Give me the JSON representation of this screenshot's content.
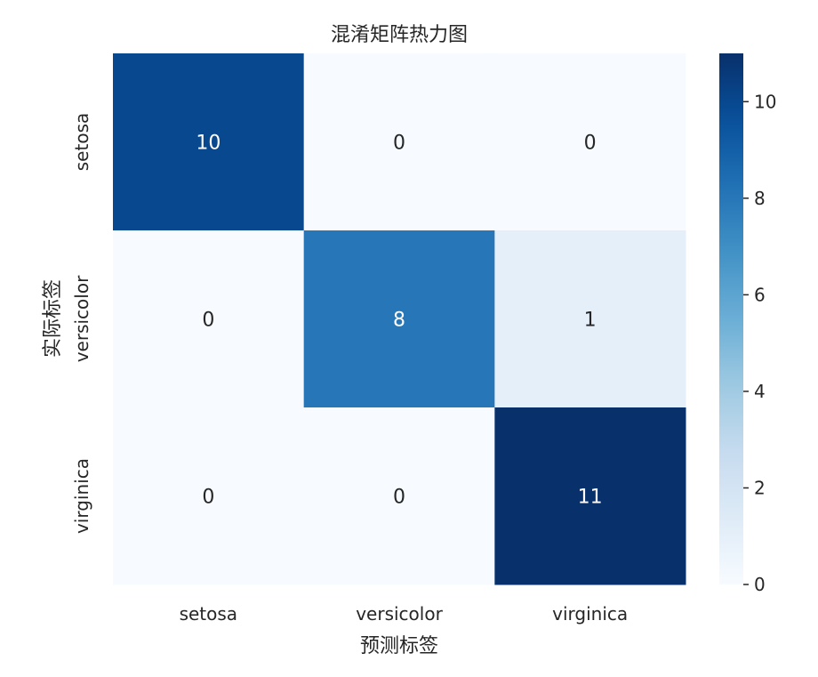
{
  "chart_data": {
    "type": "heatmap",
    "title": "混淆矩阵热力图",
    "xlabel": "预测标签",
    "ylabel": "实际标签",
    "x_categories": [
      "setosa",
      "versicolor",
      "virginica"
    ],
    "y_categories": [
      "setosa",
      "versicolor",
      "virginica"
    ],
    "values": [
      [
        10,
        0,
        0
      ],
      [
        0,
        8,
        1
      ],
      [
        0,
        0,
        11
      ]
    ],
    "colormap": "Blues",
    "color_range": [
      0,
      11
    ],
    "colorbar_ticks": [
      "0",
      "2",
      "4",
      "6",
      "8",
      "10"
    ],
    "colorbar_tick_values": [
      0,
      2,
      4,
      6,
      8,
      10
    ]
  }
}
